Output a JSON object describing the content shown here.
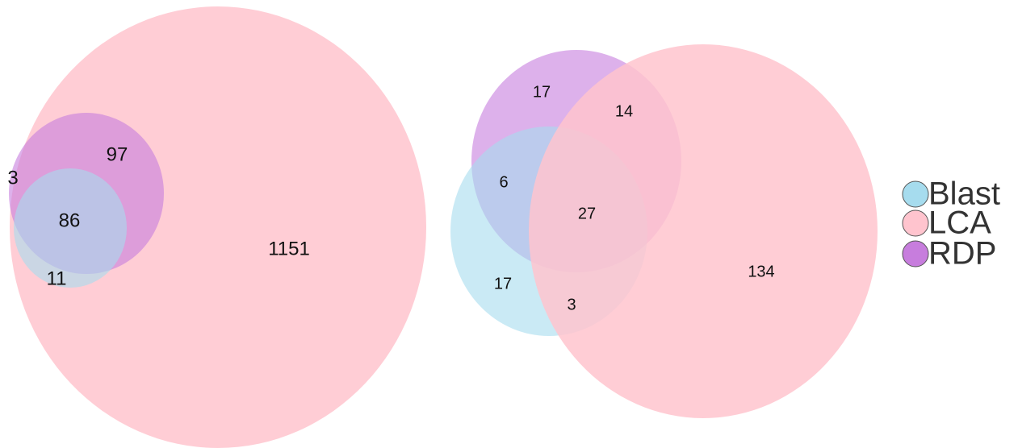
{
  "legend": [
    {
      "name": "Blast",
      "color": "#a6dcee"
    },
    {
      "name": "LCA",
      "color": "#ffc4ce"
    },
    {
      "name": "RDP",
      "color": "#c77ddd"
    }
  ],
  "diagrams": [
    {
      "regions": [
        3,
        97,
        86,
        11,
        1151
      ]
    },
    {
      "regions": [
        17,
        14,
        6,
        27,
        17,
        3,
        134
      ]
    }
  ]
}
